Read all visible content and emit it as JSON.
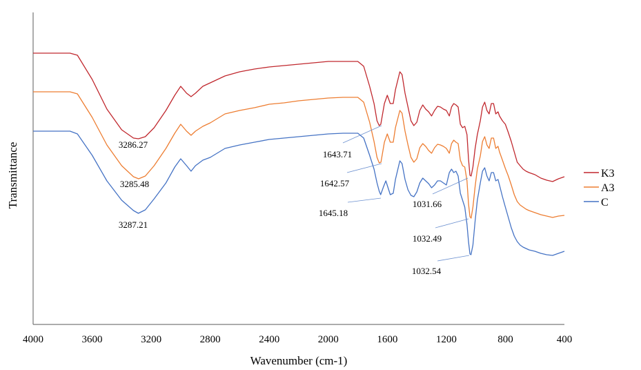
{
  "chart_data": {
    "type": "line",
    "title": "",
    "xlabel": "Wavenumber (cm-1)",
    "ylabel": "Transmittance",
    "xlim": [
      4000,
      400
    ],
    "x_reversed": true,
    "xticks": [
      "4000",
      "3600",
      "3200",
      "2800",
      "2400",
      "2000",
      "1600",
      "1200",
      "800",
      "400"
    ],
    "y_ticks_shown": false,
    "grid": false,
    "legend_position": "right",
    "series": [
      {
        "name": "K3",
        "color": "#C0272D",
        "points": [
          [
            4000,
            77
          ],
          [
            3750,
            77
          ],
          [
            3700,
            80
          ],
          [
            3600,
            115
          ],
          [
            3500,
            158
          ],
          [
            3400,
            188
          ],
          [
            3320,
            200
          ],
          [
            3286,
            201
          ],
          [
            3240,
            198
          ],
          [
            3180,
            185
          ],
          [
            3100,
            160
          ],
          [
            3040,
            138
          ],
          [
            3000,
            125
          ],
          [
            2960,
            135
          ],
          [
            2930,
            140
          ],
          [
            2900,
            135
          ],
          [
            2850,
            125
          ],
          [
            2800,
            120
          ],
          [
            2700,
            110
          ],
          [
            2600,
            104
          ],
          [
            2500,
            100
          ],
          [
            2400,
            97
          ],
          [
            2300,
            95
          ],
          [
            2200,
            93
          ],
          [
            2100,
            91
          ],
          [
            2000,
            89
          ],
          [
            1900,
            89
          ],
          [
            1800,
            89
          ],
          [
            1760,
            96
          ],
          [
            1720,
            125
          ],
          [
            1690,
            150
          ],
          [
            1670,
            175
          ],
          [
            1655,
            182
          ],
          [
            1644,
            180
          ],
          [
            1620,
            150
          ],
          [
            1600,
            138
          ],
          [
            1580,
            150
          ],
          [
            1560,
            150
          ],
          [
            1545,
            130
          ],
          [
            1515,
            104
          ],
          [
            1500,
            108
          ],
          [
            1480,
            135
          ],
          [
            1460,
            155
          ],
          [
            1440,
            175
          ],
          [
            1420,
            182
          ],
          [
            1400,
            177
          ],
          [
            1380,
            160
          ],
          [
            1360,
            152
          ],
          [
            1340,
            158
          ],
          [
            1320,
            162
          ],
          [
            1300,
            168
          ],
          [
            1280,
            160
          ],
          [
            1260,
            154
          ],
          [
            1240,
            155
          ],
          [
            1220,
            158
          ],
          [
            1200,
            160
          ],
          [
            1180,
            168
          ],
          [
            1165,
            155
          ],
          [
            1150,
            150
          ],
          [
            1135,
            152
          ],
          [
            1120,
            155
          ],
          [
            1105,
            180
          ],
          [
            1090,
            185
          ],
          [
            1075,
            183
          ],
          [
            1060,
            195
          ],
          [
            1050,
            230
          ],
          [
            1040,
            254
          ],
          [
            1032,
            255
          ],
          [
            1020,
            242
          ],
          [
            1005,
            215
          ],
          [
            990,
            195
          ],
          [
            970,
            175
          ],
          [
            955,
            155
          ],
          [
            940,
            148
          ],
          [
            925,
            160
          ],
          [
            910,
            165
          ],
          [
            895,
            150
          ],
          [
            880,
            150
          ],
          [
            865,
            165
          ],
          [
            850,
            162
          ],
          [
            840,
            168
          ],
          [
            820,
            175
          ],
          [
            800,
            180
          ],
          [
            780,
            192
          ],
          [
            760,
            205
          ],
          [
            740,
            220
          ],
          [
            720,
            235
          ],
          [
            700,
            240
          ],
          [
            680,
            245
          ],
          [
            660,
            248
          ],
          [
            640,
            250
          ],
          [
            600,
            253
          ],
          [
            560,
            258
          ],
          [
            520,
            261
          ],
          [
            480,
            263
          ],
          [
            440,
            259
          ],
          [
            400,
            256
          ]
        ]
      },
      {
        "name": "A3",
        "color": "#ED7D31",
        "points": [
          [
            4000,
            133
          ],
          [
            3750,
            133
          ],
          [
            3700,
            136
          ],
          [
            3600,
            170
          ],
          [
            3500,
            210
          ],
          [
            3400,
            240
          ],
          [
            3320,
            256
          ],
          [
            3285,
            259
          ],
          [
            3240,
            255
          ],
          [
            3180,
            240
          ],
          [
            3100,
            215
          ],
          [
            3040,
            193
          ],
          [
            3000,
            180
          ],
          [
            2960,
            190
          ],
          [
            2930,
            196
          ],
          [
            2900,
            190
          ],
          [
            2850,
            183
          ],
          [
            2800,
            178
          ],
          [
            2700,
            165
          ],
          [
            2600,
            160
          ],
          [
            2500,
            156
          ],
          [
            2400,
            151
          ],
          [
            2300,
            149
          ],
          [
            2200,
            146
          ],
          [
            2100,
            144
          ],
          [
            2000,
            142
          ],
          [
            1900,
            141
          ],
          [
            1800,
            141
          ],
          [
            1760,
            148
          ],
          [
            1720,
            177
          ],
          [
            1690,
            205
          ],
          [
            1670,
            228
          ],
          [
            1655,
            236
          ],
          [
            1643,
            235
          ],
          [
            1620,
            206
          ],
          [
            1600,
            194
          ],
          [
            1580,
            206
          ],
          [
            1560,
            206
          ],
          [
            1545,
            185
          ],
          [
            1515,
            160
          ],
          [
            1500,
            164
          ],
          [
            1480,
            190
          ],
          [
            1460,
            210
          ],
          [
            1440,
            228
          ],
          [
            1420,
            235
          ],
          [
            1400,
            230
          ],
          [
            1380,
            214
          ],
          [
            1360,
            208
          ],
          [
            1340,
            212
          ],
          [
            1320,
            218
          ],
          [
            1300,
            222
          ],
          [
            1280,
            214
          ],
          [
            1260,
            209
          ],
          [
            1240,
            210
          ],
          [
            1220,
            212
          ],
          [
            1200,
            215
          ],
          [
            1180,
            222
          ],
          [
            1165,
            208
          ],
          [
            1150,
            203
          ],
          [
            1135,
            206
          ],
          [
            1120,
            208
          ],
          [
            1105,
            232
          ],
          [
            1090,
            240
          ],
          [
            1075,
            242
          ],
          [
            1060,
            262
          ],
          [
            1050,
            295
          ],
          [
            1040,
            314
          ],
          [
            1032,
            316
          ],
          [
            1020,
            300
          ],
          [
            1005,
            270
          ],
          [
            990,
            245
          ],
          [
            970,
            226
          ],
          [
            955,
            205
          ],
          [
            940,
            198
          ],
          [
            925,
            210
          ],
          [
            910,
            215
          ],
          [
            895,
            200
          ],
          [
            880,
            200
          ],
          [
            865,
            215
          ],
          [
            850,
            212
          ],
          [
            840,
            220
          ],
          [
            820,
            232
          ],
          [
            800,
            244
          ],
          [
            780,
            255
          ],
          [
            760,
            268
          ],
          [
            740,
            282
          ],
          [
            720,
            292
          ],
          [
            700,
            297
          ],
          [
            680,
            300
          ],
          [
            660,
            303
          ],
          [
            640,
            305
          ],
          [
            600,
            308
          ],
          [
            560,
            311
          ],
          [
            520,
            313
          ],
          [
            480,
            315
          ],
          [
            440,
            313
          ],
          [
            400,
            312
          ]
        ]
      },
      {
        "name": "C",
        "color": "#4472C4",
        "points": [
          [
            4000,
            190
          ],
          [
            3750,
            190
          ],
          [
            3700,
            194
          ],
          [
            3600,
            225
          ],
          [
            3500,
            262
          ],
          [
            3400,
            290
          ],
          [
            3320,
            305
          ],
          [
            3287,
            309
          ],
          [
            3240,
            304
          ],
          [
            3180,
            288
          ],
          [
            3100,
            265
          ],
          [
            3040,
            242
          ],
          [
            3000,
            230
          ],
          [
            2960,
            240
          ],
          [
            2930,
            248
          ],
          [
            2900,
            240
          ],
          [
            2850,
            232
          ],
          [
            2800,
            228
          ],
          [
            2700,
            215
          ],
          [
            2600,
            210
          ],
          [
            2500,
            206
          ],
          [
            2400,
            202
          ],
          [
            2300,
            200
          ],
          [
            2200,
            198
          ],
          [
            2100,
            196
          ],
          [
            2000,
            194
          ],
          [
            1900,
            193
          ],
          [
            1800,
            193
          ],
          [
            1760,
            200
          ],
          [
            1720,
            225
          ],
          [
            1690,
            245
          ],
          [
            1670,
            265
          ],
          [
            1655,
            277
          ],
          [
            1645,
            282
          ],
          [
            1625,
            270
          ],
          [
            1610,
            262
          ],
          [
            1595,
            272
          ],
          [
            1580,
            282
          ],
          [
            1560,
            280
          ],
          [
            1545,
            260
          ],
          [
            1515,
            233
          ],
          [
            1500,
            237
          ],
          [
            1480,
            260
          ],
          [
            1460,
            275
          ],
          [
            1440,
            283
          ],
          [
            1420,
            285
          ],
          [
            1400,
            278
          ],
          [
            1380,
            265
          ],
          [
            1360,
            258
          ],
          [
            1340,
            262
          ],
          [
            1320,
            266
          ],
          [
            1300,
            272
          ],
          [
            1280,
            268
          ],
          [
            1260,
            262
          ],
          [
            1240,
            262
          ],
          [
            1220,
            265
          ],
          [
            1200,
            268
          ],
          [
            1180,
            250
          ],
          [
            1165,
            245
          ],
          [
            1150,
            250
          ],
          [
            1135,
            248
          ],
          [
            1120,
            255
          ],
          [
            1105,
            280
          ],
          [
            1090,
            290
          ],
          [
            1075,
            300
          ],
          [
            1060,
            325
          ],
          [
            1050,
            350
          ],
          [
            1040,
            368
          ],
          [
            1033,
            369
          ],
          [
            1020,
            355
          ],
          [
            1005,
            320
          ],
          [
            990,
            290
          ],
          [
            970,
            265
          ],
          [
            955,
            248
          ],
          [
            940,
            243
          ],
          [
            925,
            255
          ],
          [
            910,
            262
          ],
          [
            895,
            250
          ],
          [
            880,
            250
          ],
          [
            865,
            262
          ],
          [
            850,
            260
          ],
          [
            840,
            268
          ],
          [
            820,
            285
          ],
          [
            800,
            300
          ],
          [
            780,
            315
          ],
          [
            760,
            330
          ],
          [
            740,
            342
          ],
          [
            720,
            350
          ],
          [
            700,
            355
          ],
          [
            680,
            358
          ],
          [
            660,
            360
          ],
          [
            640,
            362
          ],
          [
            600,
            364
          ],
          [
            560,
            367
          ],
          [
            520,
            369
          ],
          [
            480,
            370
          ],
          [
            440,
            367
          ],
          [
            400,
            364
          ]
        ]
      }
    ],
    "annotations": [
      {
        "text": "3286.27",
        "series": "K3",
        "x": 3286.27
      },
      {
        "text": "3285.48",
        "series": "A3",
        "x": 3285.48
      },
      {
        "text": "3287.21",
        "series": "C",
        "x": 3287.21
      },
      {
        "text": "1643.71",
        "series": "K3",
        "x": 1643.71
      },
      {
        "text": "1642.57",
        "series": "A3",
        "x": 1642.57
      },
      {
        "text": "1645.18",
        "series": "C",
        "x": 1645.18
      },
      {
        "text": "1031.66",
        "series": "K3",
        "x": 1031.66
      },
      {
        "text": "1032.49",
        "series": "A3",
        "x": 1032.49
      },
      {
        "text": "1032.54",
        "series": "C",
        "x": 1032.54
      }
    ]
  }
}
